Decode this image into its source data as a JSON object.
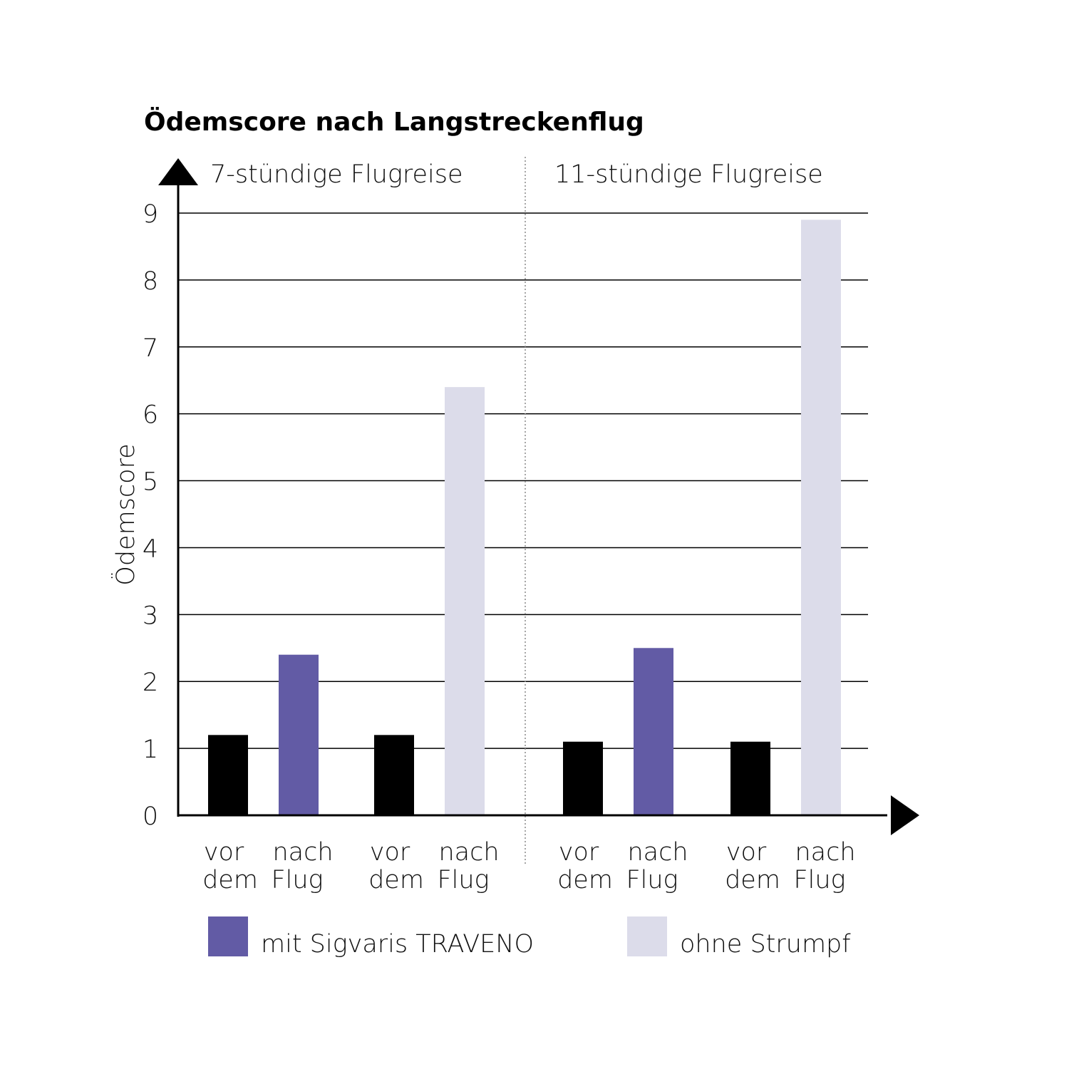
{
  "chart_data": {
    "type": "bar",
    "title": "Ödemscore nach Langstreckenflug",
    "ylabel": "Ödemscore",
    "xlabel": "",
    "ylim": [
      0,
      9
    ],
    "yticks": [
      "0",
      "1",
      "2",
      "3",
      "4",
      "5",
      "6",
      "7",
      "8",
      "9"
    ],
    "grid": true,
    "groups": [
      {
        "label": "7-stündige Flugreise",
        "bars": [
          {
            "label_top": "vor",
            "label_bottom": "dem",
            "value": 1.2,
            "series": "baseline"
          },
          {
            "label_top": "nach",
            "label_bottom": "Flug",
            "value": 2.4,
            "series": "mit Sigvaris TRAVENO"
          },
          {
            "label_top": "vor",
            "label_bottom": "dem",
            "value": 1.2,
            "series": "baseline"
          },
          {
            "label_top": "nach",
            "label_bottom": "Flug",
            "value": 6.4,
            "series": "ohne Strumpf"
          }
        ]
      },
      {
        "label": "11-stündige Flugreise",
        "bars": [
          {
            "label_top": "vor",
            "label_bottom": "dem",
            "value": 1.1,
            "series": "baseline"
          },
          {
            "label_top": "nach",
            "label_bottom": "Flug",
            "value": 2.5,
            "series": "mit Sigvaris TRAVENO"
          },
          {
            "label_top": "vor",
            "label_bottom": "dem",
            "value": 1.1,
            "series": "baseline"
          },
          {
            "label_top": "nach",
            "label_bottom": "Flug",
            "value": 8.9,
            "series": "ohne Strumpf"
          }
        ]
      }
    ],
    "legend": [
      {
        "name": "mit Sigvaris TRAVENO",
        "color": "#625ba5"
      },
      {
        "name": "ohne Strumpf",
        "color": "#dcdcea"
      }
    ],
    "colors": {
      "baseline": "#000000",
      "mit Sigvaris TRAVENO": "#625ba5",
      "ohne Strumpf": "#dcdcea"
    },
    "legend_position": "bottom"
  }
}
